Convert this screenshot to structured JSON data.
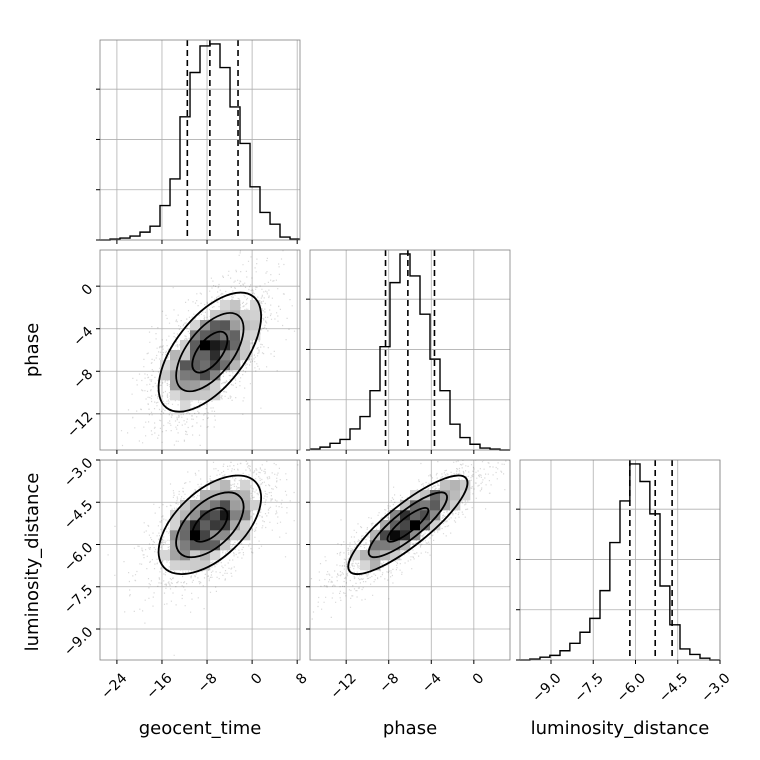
{
  "chart_data": {
    "type": "corner",
    "parameters": [
      "geocent_time",
      "phase",
      "luminosity_distance"
    ],
    "grid": true,
    "ranges": {
      "geocent_time": [
        -27,
        8.5
      ],
      "phase": [
        -15.4,
        3.4
      ],
      "luminosity_distance": [
        -10.1,
        -3.0
      ]
    },
    "ticks": {
      "geocent_time": [
        -24,
        -16,
        -8,
        0,
        8
      ],
      "phase": [
        -12,
        -8,
        -4,
        0
      ],
      "luminosity_distance": [
        -9.0,
        -7.5,
        -6.0,
        -4.5,
        -3.0
      ]
    },
    "tick_labels": {
      "geocent_time": [
        "−24",
        "−16",
        "−8",
        "0",
        "8"
      ],
      "phase": [
        "−12",
        "−8",
        "−4",
        "0"
      ],
      "luminosity_distance": [
        "−9.0",
        "−7.5",
        "−6.0",
        "−4.5",
        "−3.0"
      ]
    },
    "quantiles": {
      "geocent_time": [
        -11.5,
        -7.5,
        -2.5
      ],
      "phase": [
        -8.3,
        -6.2,
        -3.7
      ],
      "luminosity_distance": [
        -6.2,
        -5.3,
        -4.7
      ]
    },
    "histograms": {
      "geocent_time": {
        "bins": [
          -27.0,
          -25.22,
          -23.45,
          -21.67,
          -19.9,
          -18.12,
          -16.35,
          -14.57,
          -12.8,
          -11.02,
          -9.25,
          -7.47,
          -5.7,
          -3.92,
          -2.15,
          -0.37,
          1.4,
          3.18,
          4.95,
          6.73,
          8.5
        ],
        "counts": [
          0,
          1,
          2,
          4,
          8,
          14,
          35,
          62,
          125,
          170,
          197,
          199,
          175,
          135,
          98,
          54,
          28,
          16,
          3,
          1
        ]
      },
      "phase": {
        "bins": [
          -15.4,
          -14.46,
          -13.52,
          -12.58,
          -11.64,
          -10.7,
          -9.76,
          -8.82,
          -7.88,
          -6.94,
          -6.0,
          -5.06,
          -4.12,
          -3.18,
          -2.24,
          -1.3,
          -0.36,
          0.58,
          1.52,
          2.46,
          3.4
        ],
        "counts": [
          1,
          3,
          7,
          11,
          22,
          35,
          62,
          108,
          175,
          205,
          182,
          142,
          95,
          62,
          27,
          13,
          6,
          2,
          1,
          0
        ]
      },
      "luminosity_distance": {
        "bins": [
          -10.1,
          -9.75,
          -9.39,
          -9.04,
          -8.68,
          -8.33,
          -7.97,
          -7.62,
          -7.26,
          -6.91,
          -6.55,
          -6.2,
          -5.84,
          -5.49,
          -5.13,
          -4.78,
          -4.42,
          -4.07,
          -3.71,
          -3.36,
          -3.0
        ],
        "counts": [
          0,
          1,
          3,
          5,
          10,
          18,
          30,
          45,
          75,
          127,
          172,
          212,
          193,
          158,
          80,
          38,
          12,
          6,
          2,
          0
        ]
      }
    },
    "scatter_summary": {
      "phase_vs_geocent_time": {
        "mean": [
          -7.5,
          -6.2
        ],
        "sd": [
          5.2,
          3.2
        ],
        "corr": 0.6
      },
      "luminosity_distance_vs_geocent_time": {
        "mean": [
          -7.5,
          -5.3
        ],
        "sd": [
          5.2,
          1.0
        ],
        "corr": 0.55
      },
      "luminosity_distance_vs_phase": {
        "mean": [
          -6.2,
          -5.3
        ],
        "sd": [
          3.2,
          1.0
        ],
        "corr": 0.85
      }
    }
  }
}
